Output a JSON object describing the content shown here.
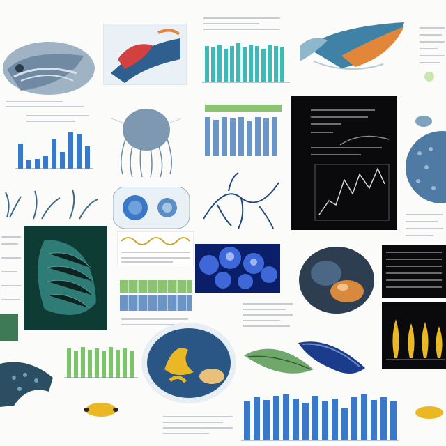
{
  "collage": {
    "background": "#fbfbfa",
    "style": "scientific illustration and chart collage",
    "visible_text": ""
  },
  "palette": {
    "blue": "#3b78c8",
    "teal": "#3fb8b6",
    "green": "#7cc46a",
    "dark_green": "#0e3b33",
    "navy": "#1a3c8a",
    "orange": "#e2873a",
    "yellow": "#e9b824",
    "black": "#0a0a0c"
  },
  "tiles": [
    {
      "name": "fish-head-illustration",
      "kind": "illustration"
    },
    {
      "name": "fish-fin-illustration",
      "kind": "illustration"
    },
    {
      "name": "teal-bar-chart",
      "kind": "chart"
    },
    {
      "name": "koi-fish-illustration",
      "kind": "illustration"
    },
    {
      "name": "blue-bar-chart-small",
      "kind": "chart"
    },
    {
      "name": "jellyfish-illustration",
      "kind": "illustration"
    },
    {
      "name": "striped-bar-chart",
      "kind": "chart"
    },
    {
      "name": "dark-line-chart-panel",
      "kind": "chart"
    },
    {
      "name": "coral-sponge-illustration",
      "kind": "illustration"
    },
    {
      "name": "seaweed-sketches",
      "kind": "illustration"
    },
    {
      "name": "cell-spheres-diagram",
      "kind": "diagram"
    },
    {
      "name": "vein-network-diagram",
      "kind": "diagram"
    },
    {
      "name": "scaled-leaf-micrograph",
      "kind": "illustration"
    },
    {
      "name": "wave-line-plot",
      "kind": "chart"
    },
    {
      "name": "blue-cells-micrograph",
      "kind": "illustration"
    },
    {
      "name": "specimen-oval-photo",
      "kind": "illustration"
    },
    {
      "name": "dark-table-panel",
      "kind": "table"
    },
    {
      "name": "flame-bars-dark",
      "kind": "chart"
    },
    {
      "name": "green-striped-chart",
      "kind": "chart"
    },
    {
      "name": "petri-dish-specimen",
      "kind": "illustration"
    },
    {
      "name": "green-leaf-specimen",
      "kind": "illustration"
    },
    {
      "name": "blue-slug-specimen",
      "kind": "illustration"
    },
    {
      "name": "green-bar-chart",
      "kind": "chart"
    },
    {
      "name": "large-blue-bar-chart",
      "kind": "chart"
    },
    {
      "name": "orange-blob-specimen",
      "kind": "illustration"
    },
    {
      "name": "dark-coral-illustration",
      "kind": "illustration"
    }
  ]
}
